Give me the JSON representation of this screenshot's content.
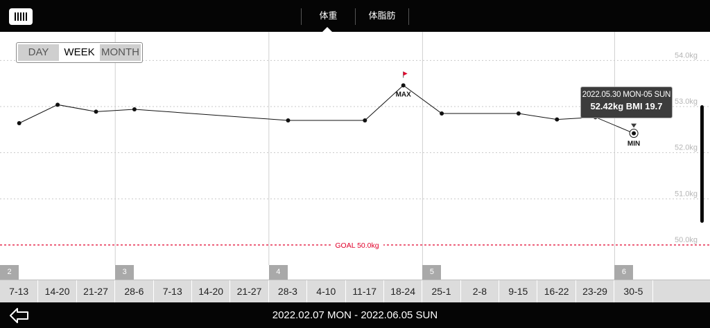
{
  "app": {
    "icon": "app-logo-icon"
  },
  "tabs": [
    {
      "label": "体重"
    },
    {
      "label": "体脂肪"
    }
  ],
  "range_selector": {
    "options": [
      "DAY",
      "WEEK",
      "MONTH"
    ],
    "selected": "WEEK"
  },
  "tooltip": {
    "date": "2022.05.30 MON-05 SUN",
    "value": "52.42kg  BMI 19.7"
  },
  "markers": {
    "max_label": "MAX",
    "min_label": "MIN",
    "max_flag_icon": "flag-icon",
    "flag_color": "#e0002a"
  },
  "goal": {
    "label": "GOAL 50.0kg",
    "value": 50.0,
    "color": "#e0002a"
  },
  "months": [
    "2",
    "3",
    "4",
    "5",
    "6"
  ],
  "weeks": [
    "7-13",
    "14-20",
    "21-27",
    "28-6",
    "7-13",
    "14-20",
    "21-27",
    "28-3",
    "4-10",
    "11-17",
    "18-24",
    "25-1",
    "2-8",
    "9-15",
    "16-22",
    "23-29",
    "30-5"
  ],
  "date_range": "2022.02.07 MON - 2022.06.05 SUN",
  "back_icon": "back-arrow-icon",
  "chart_data": {
    "type": "line",
    "categories": [
      "7-13",
      "14-20",
      "21-27",
      "28-6",
      "7-13",
      "14-20",
      "21-27",
      "28-3",
      "4-10",
      "11-17",
      "18-24",
      "25-1",
      "2-8",
      "9-15",
      "16-22",
      "23-29",
      "30-5"
    ],
    "series": [
      {
        "values": [
          52.64,
          53.04,
          52.89,
          52.94,
          null,
          null,
          null,
          52.7,
          null,
          52.7,
          53.46,
          52.85,
          null,
          52.85,
          52.72,
          52.77,
          52.42
        ]
      }
    ],
    "ylim": [
      49.85,
      54.5
    ],
    "yticks": [
      {
        "value": 54,
        "label": "54.0kg"
      },
      {
        "value": 53,
        "label": "53.0kg"
      },
      {
        "value": 52,
        "label": "52.0kg"
      },
      {
        "value": 51,
        "label": "51.0kg"
      },
      {
        "value": 50,
        "label": "50.0kg"
      }
    ],
    "grid": true,
    "max_index": 10,
    "min_index": 16
  }
}
